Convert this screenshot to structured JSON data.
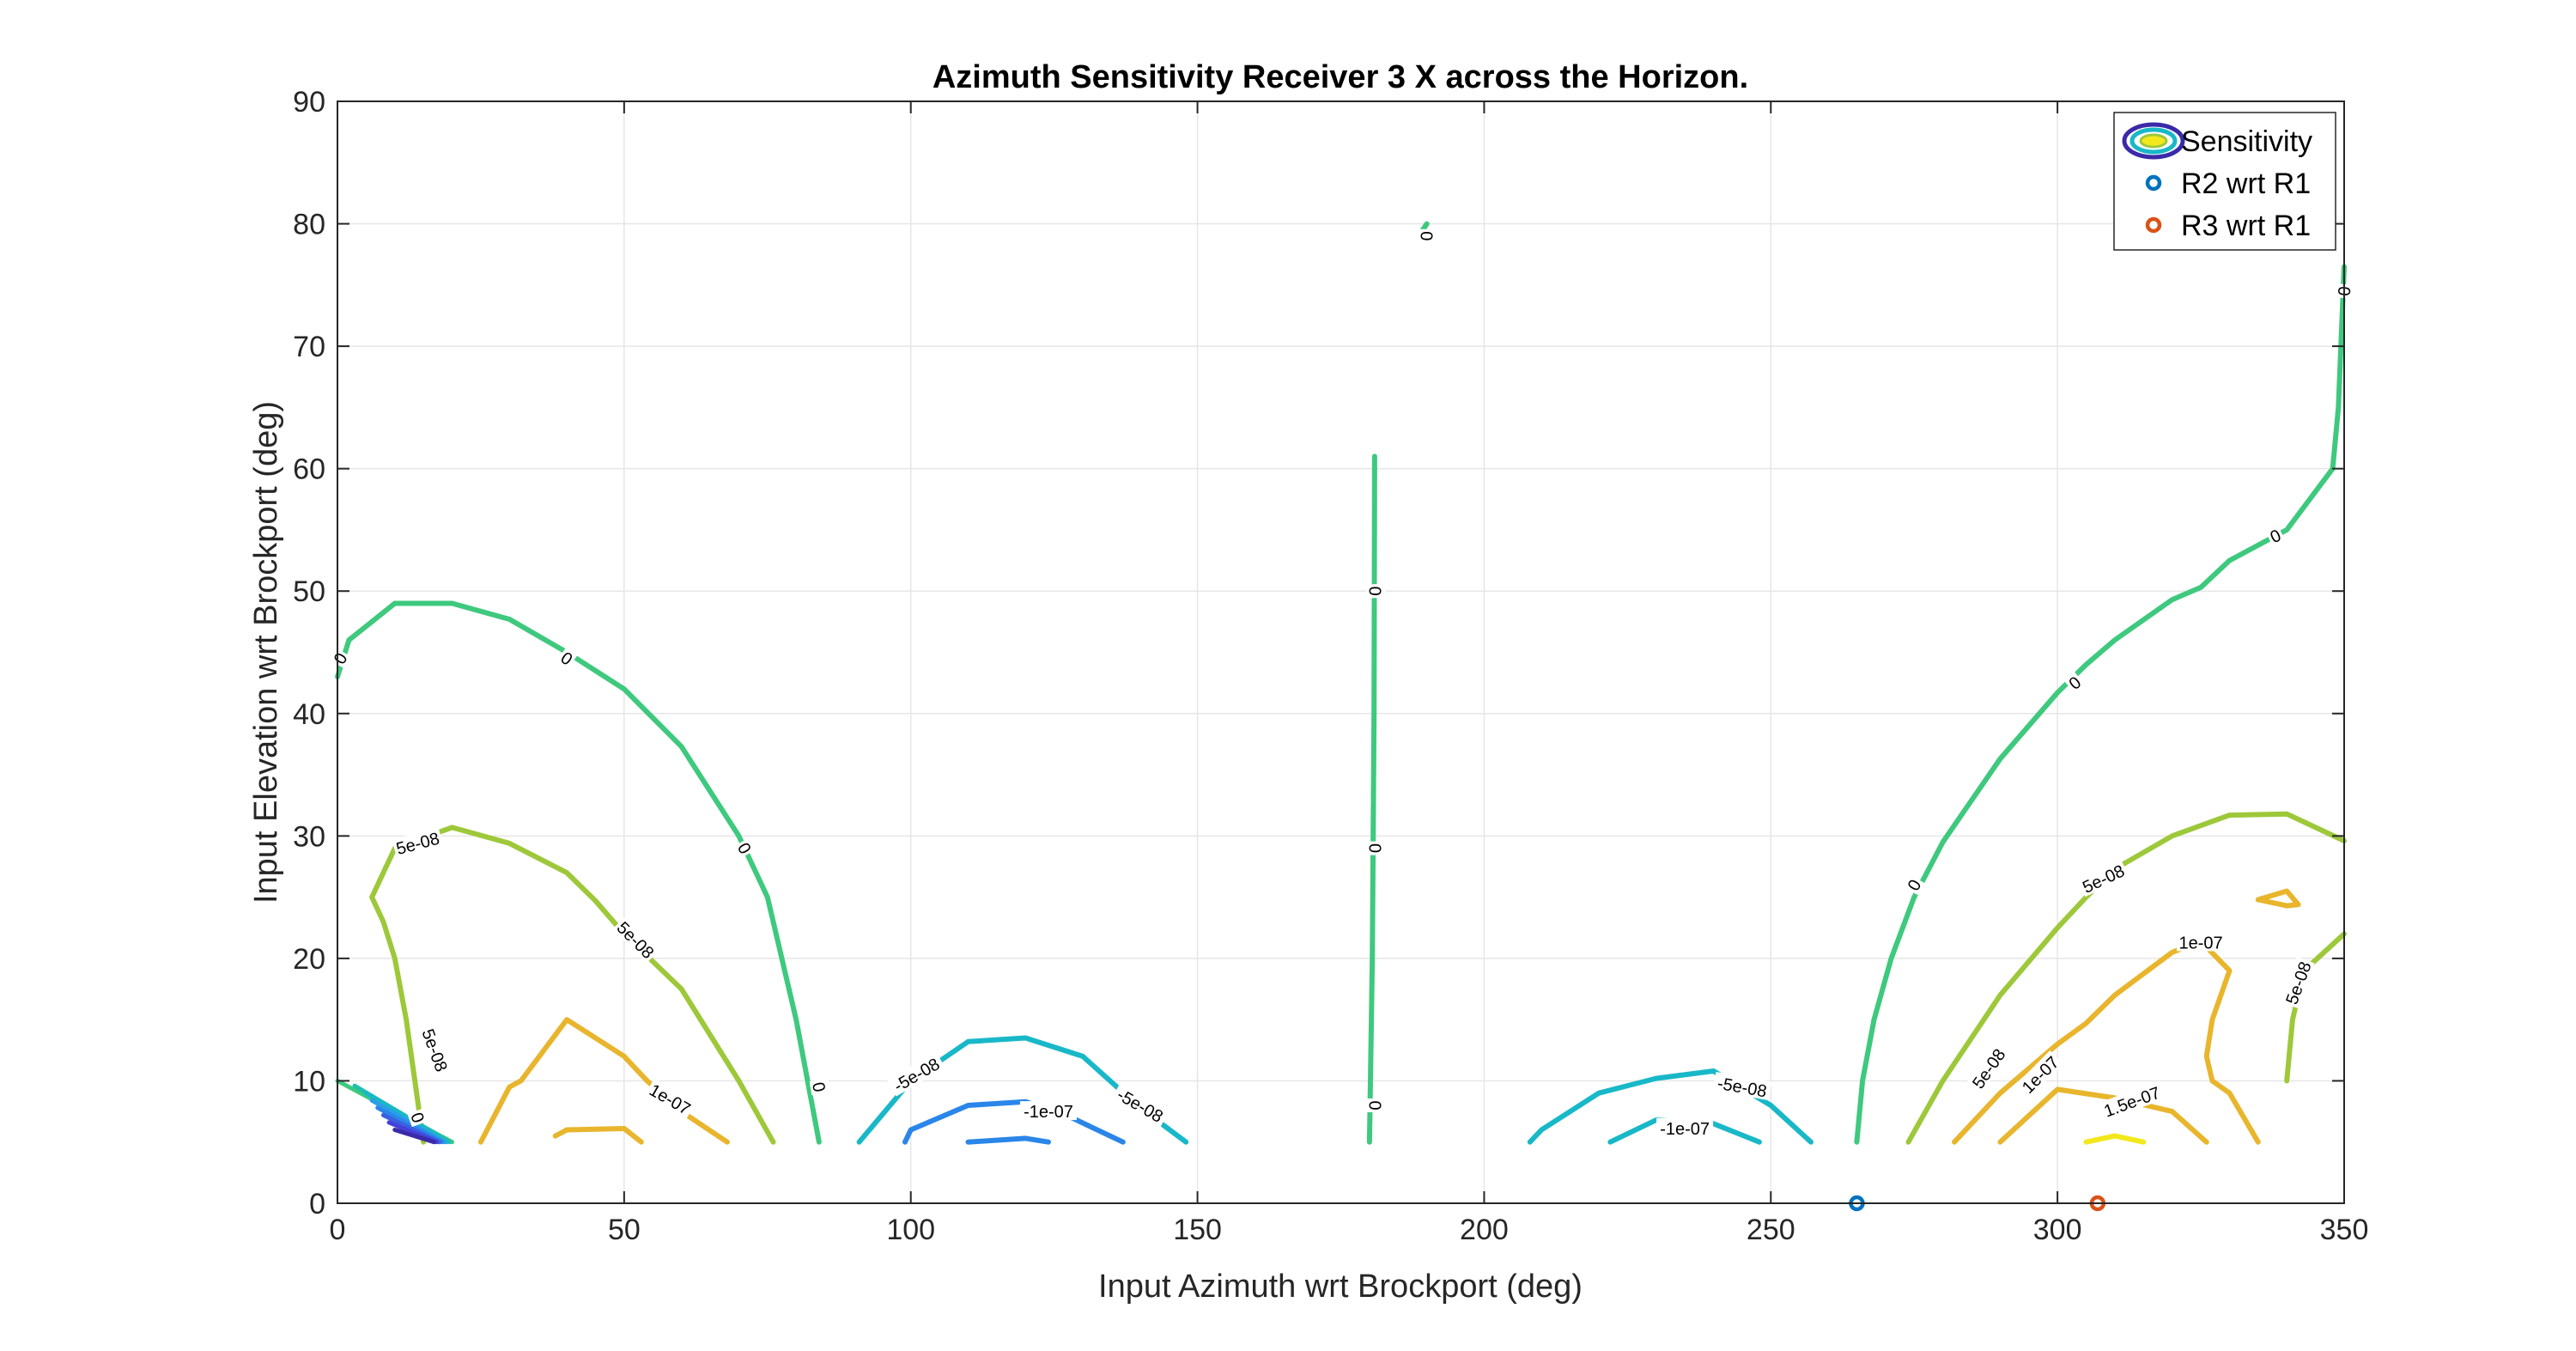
{
  "chart_data": {
    "type": "contour",
    "title": "Azimuth Sensitivity Receiver 3 X across the Horizon.",
    "xlabel": "Input Azimuth wrt Brockport (deg)",
    "ylabel": "Input Elevation wrt Brockport (deg)",
    "xlim": [
      0,
      350
    ],
    "ylim": [
      0,
      90
    ],
    "xticks": [
      0,
      50,
      100,
      150,
      200,
      250,
      300,
      350
    ],
    "yticks": [
      0,
      10,
      20,
      30,
      40,
      50,
      60,
      70,
      80,
      90
    ],
    "grid": true,
    "legend": {
      "placement": "top-right",
      "entries": [
        "Sensitivity",
        "R2 wrt R1",
        "R3 wrt R1"
      ]
    },
    "colors": {
      "neg_1e07": "#2a86e8",
      "neg_5e08": "#19b8c8",
      "zero": "#3ec97e",
      "pos_5e08": "#9dc83a",
      "pos_1e07": "#e8b52c",
      "pos_15e07": "#f2e81c",
      "r2_marker": "#0072bd",
      "r3_marker": "#d95319",
      "grid": "#e6e6e6",
      "axis": "#262626"
    },
    "contours": [
      {
        "level": "0",
        "color": "zero",
        "points": [
          [
            0,
            43
          ],
          [
            2,
            46
          ],
          [
            10,
            49
          ],
          [
            20,
            49
          ],
          [
            30,
            47.7
          ],
          [
            40,
            45
          ],
          [
            50,
            42
          ],
          [
            60,
            37.3
          ],
          [
            70,
            30
          ],
          [
            75,
            25
          ],
          [
            80,
            15
          ],
          [
            84,
            5
          ]
        ]
      },
      {
        "level": "0",
        "color": "zero",
        "points": [
          [
            180,
            5
          ],
          [
            180.5,
            20
          ],
          [
            180.8,
            40
          ],
          [
            180.9,
            61
          ]
        ]
      },
      {
        "level": "0",
        "color": "zero",
        "points": [
          [
            189,
            79.3
          ],
          [
            190,
            80
          ]
        ]
      },
      {
        "level": "0",
        "color": "zero",
        "points": [
          [
            265,
            5
          ],
          [
            266,
            10
          ],
          [
            268,
            15
          ],
          [
            271,
            20
          ],
          [
            275,
            25
          ],
          [
            280,
            29.5
          ],
          [
            290,
            36.3
          ],
          [
            300,
            41.7
          ],
          [
            305,
            44
          ],
          [
            310,
            46
          ],
          [
            320,
            49.3
          ],
          [
            325,
            50.3
          ],
          [
            330,
            52.5
          ],
          [
            340,
            55
          ],
          [
            348,
            60
          ],
          [
            349,
            65
          ],
          [
            350,
            76.5
          ]
        ]
      },
      {
        "level": "5e-08",
        "color": "pos_5e08",
        "points": [
          [
            15,
            5
          ],
          [
            12,
            15
          ],
          [
            10,
            20
          ],
          [
            8,
            23
          ],
          [
            6,
            25
          ],
          [
            10,
            29
          ],
          [
            20,
            30.7
          ],
          [
            30,
            29.4
          ],
          [
            40,
            27
          ],
          [
            45,
            24.7
          ],
          [
            50,
            22
          ],
          [
            60,
            17.5
          ],
          [
            70,
            10
          ],
          [
            76,
            5
          ]
        ]
      },
      {
        "level": "5e-08",
        "color": "pos_5e08",
        "points": [
          [
            274,
            5
          ],
          [
            280,
            10
          ],
          [
            290,
            17
          ],
          [
            300,
            22.5
          ],
          [
            305,
            25
          ],
          [
            310,
            27.3
          ],
          [
            320,
            30
          ],
          [
            330,
            31.7
          ],
          [
            340,
            31.8
          ],
          [
            350,
            29.6
          ]
        ]
      },
      {
        "level": "5e-08",
        "color": "pos_5e08",
        "points": [
          [
            340,
            10
          ],
          [
            341,
            15
          ],
          [
            343,
            19
          ],
          [
            350,
            22
          ]
        ]
      },
      {
        "level": "1e-07",
        "color": "pos_1e07",
        "points": [
          [
            25,
            5
          ],
          [
            30,
            9.5
          ],
          [
            32,
            10
          ],
          [
            40,
            15
          ],
          [
            50,
            12
          ],
          [
            54,
            10
          ],
          [
            60,
            7.5
          ],
          [
            68,
            5
          ]
        ]
      },
      {
        "level": "1e-07",
        "color": "pos_1e07",
        "points": [
          [
            282,
            5
          ],
          [
            290,
            9
          ],
          [
            300,
            13
          ],
          [
            305,
            14.7
          ],
          [
            310,
            17
          ],
          [
            320,
            20.5
          ],
          [
            325,
            21.4
          ],
          [
            330,
            19
          ],
          [
            327,
            15
          ],
          [
            326,
            12
          ],
          [
            327,
            10
          ],
          [
            330,
            9
          ],
          [
            335,
            5
          ]
        ]
      },
      {
        "level": "1e-07",
        "color": "pos_1e07",
        "points": [
          [
            335,
            24.8
          ],
          [
            340,
            25.5
          ],
          [
            342,
            24.4
          ],
          [
            340,
            24.3
          ],
          [
            335,
            24.8
          ]
        ]
      },
      {
        "level": "1.5e-07",
        "color": "pos_1e07",
        "points": [
          [
            290,
            5
          ],
          [
            300,
            9.3
          ],
          [
            310,
            8.6
          ],
          [
            320,
            7.5
          ],
          [
            326,
            5
          ]
        ]
      },
      {
        "level": "1.5e-07",
        "color": "pos_15e07",
        "points": [
          [
            305,
            5
          ],
          [
            310,
            5.5
          ],
          [
            315,
            5
          ]
        ]
      },
      {
        "level": "1.5e-07",
        "color": "pos_1e07",
        "points": [
          [
            38,
            5.5
          ],
          [
            40,
            6
          ],
          [
            50,
            6.1
          ],
          [
            53,
            5
          ]
        ]
      },
      {
        "level": "-5e-08",
        "color": "neg_5e08",
        "points": [
          [
            91,
            5
          ],
          [
            100,
            10
          ],
          [
            110,
            13.2
          ],
          [
            120,
            13.5
          ],
          [
            130,
            12
          ],
          [
            140,
            7.8
          ],
          [
            148,
            5
          ]
        ]
      },
      {
        "level": "-1e-07",
        "color": "neg_1e07",
        "points": [
          [
            99,
            5
          ],
          [
            100,
            6
          ],
          [
            110,
            8
          ],
          [
            120,
            8.3
          ],
          [
            128,
            7
          ],
          [
            137,
            5
          ]
        ]
      },
      {
        "level": "-1.5e-07",
        "color": "neg_1e07",
        "points": [
          [
            110,
            5
          ],
          [
            120,
            5.3
          ],
          [
            124,
            5
          ]
        ]
      },
      {
        "level": "-5e-08",
        "color": "neg_5e08",
        "points": [
          [
            208,
            5
          ],
          [
            210,
            6
          ],
          [
            220,
            9
          ],
          [
            230,
            10.2
          ],
          [
            240,
            10.8
          ],
          [
            250,
            8
          ],
          [
            257,
            5
          ]
        ]
      },
      {
        "level": "-1e-07",
        "color": "neg_5e08",
        "points": [
          [
            222,
            5
          ],
          [
            230,
            6.8
          ],
          [
            240,
            6.5
          ],
          [
            248,
            5
          ]
        ]
      }
    ],
    "corner_fan": {
      "colors": [
        "#3ec97e",
        "#21bfb0",
        "#19b8c8",
        "#2a9ee8",
        "#2a86e8",
        "#3a5fe0",
        "#4440d8",
        "#3a2aa8"
      ],
      "apex": [
        20,
        5
      ],
      "starts": [
        [
          0,
          10
        ],
        [
          3,
          9.6
        ],
        [
          5,
          9
        ],
        [
          6,
          8.4
        ],
        [
          7,
          7.8
        ],
        [
          8,
          7.2
        ],
        [
          9,
          6.6
        ],
        [
          10,
          6
        ]
      ]
    },
    "contour_labels": [
      {
        "text": "0",
        "x": 0.5,
        "y": 44.5,
        "angle": -60
      },
      {
        "text": "0",
        "x": 40,
        "y": 44.5,
        "angle": 35
      },
      {
        "text": "0",
        "x": 71,
        "y": 29,
        "angle": 60
      },
      {
        "text": "0",
        "x": 84,
        "y": 9.5,
        "angle": 80
      },
      {
        "text": "5e-08",
        "x": 14,
        "y": 29.4,
        "angle": -15
      },
      {
        "text": "5e-08",
        "x": 52,
        "y": 21.5,
        "angle": 45
      },
      {
        "text": "5e-08",
        "x": 17,
        "y": 12.5,
        "angle": 70
      },
      {
        "text": "0",
        "x": 14,
        "y": 7,
        "angle": 70
      },
      {
        "text": "1e-07",
        "x": 58,
        "y": 8.5,
        "angle": 30
      },
      {
        "text": "0",
        "x": 181,
        "y": 50,
        "angle": 90
      },
      {
        "text": "0",
        "x": 181,
        "y": 29,
        "angle": 90
      },
      {
        "text": "0",
        "x": 181,
        "y": 8,
        "angle": 90
      },
      {
        "text": "0",
        "x": 190,
        "y": 79,
        "angle": 90
      },
      {
        "text": "-5e-08",
        "x": 101,
        "y": 10.5,
        "angle": -30
      },
      {
        "text": "-1e-07",
        "x": 124,
        "y": 7.5,
        "angle": 0
      },
      {
        "text": "-5e-08",
        "x": 140,
        "y": 8,
        "angle": 30
      },
      {
        "text": "-5e-08",
        "x": 245,
        "y": 9.5,
        "angle": 10
      },
      {
        "text": "-1e-07",
        "x": 235,
        "y": 6.1,
        "angle": 0
      },
      {
        "text": "0",
        "x": 275,
        "y": 26,
        "angle": -60
      },
      {
        "text": "0",
        "x": 303,
        "y": 42.5,
        "angle": -40
      },
      {
        "text": "0",
        "x": 338,
        "y": 54.5,
        "angle": -25
      },
      {
        "text": "0",
        "x": 350,
        "y": 74.5,
        "angle": -85
      },
      {
        "text": "5e-08",
        "x": 288,
        "y": 11,
        "angle": -55
      },
      {
        "text": "5e-08",
        "x": 308,
        "y": 26.5,
        "angle": -25
      },
      {
        "text": "1e-07",
        "x": 297,
        "y": 10.5,
        "angle": -45
      },
      {
        "text": "1e-07",
        "x": 325,
        "y": 21.3,
        "angle": 0
      },
      {
        "text": "1.5e-07",
        "x": 313,
        "y": 8.3,
        "angle": -20
      },
      {
        "text": "5e-08",
        "x": 342,
        "y": 18,
        "angle": -70
      }
    ],
    "markers": [
      {
        "name": "R2 wrt R1",
        "x": 265,
        "y": 0,
        "color": "r2_marker"
      },
      {
        "name": "R3 wrt R1",
        "x": 307,
        "y": 0,
        "color": "r3_marker"
      }
    ]
  }
}
